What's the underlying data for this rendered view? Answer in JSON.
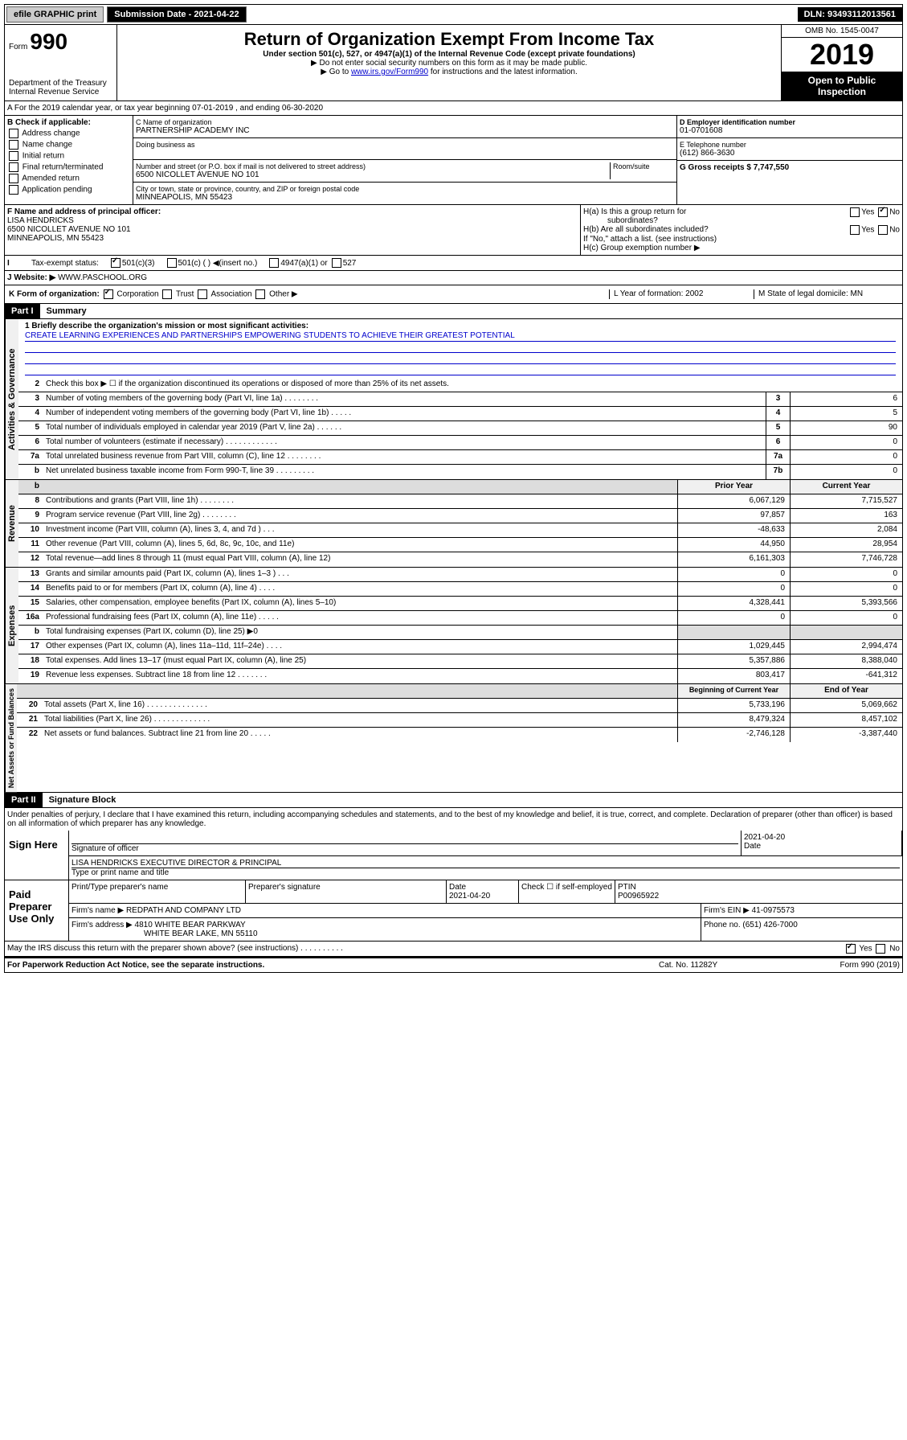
{
  "topbar": {
    "efile": "efile GRAPHIC print",
    "submission_date_label": "Submission Date - 2021-04-22",
    "dln": "DLN: 93493112013561"
  },
  "header": {
    "form_label": "Form",
    "form_number": "990",
    "dept1": "Department of the Treasury",
    "dept2": "Internal Revenue Service",
    "title": "Return of Organization Exempt From Income Tax",
    "subtitle": "Under section 501(c), 527, or 4947(a)(1) of the Internal Revenue Code (except private foundations)",
    "note1": "▶ Do not enter social security numbers on this form as it may be made public.",
    "note2_pre": "▶ Go to ",
    "note2_link": "www.irs.gov/Form990",
    "note2_post": " for instructions and the latest information.",
    "omb": "OMB No. 1545-0047",
    "year": "2019",
    "open_public": "Open to Public Inspection"
  },
  "calendar": {
    "text": "A For the 2019 calendar year, or tax year beginning 07-01-2019    , and ending 06-30-2020"
  },
  "box_b": {
    "header": "B Check if applicable:",
    "addr_change": "Address change",
    "name_change": "Name change",
    "initial": "Initial return",
    "final": "Final return/terminated",
    "amended": "Amended return",
    "application": "Application pending"
  },
  "box_c": {
    "name_label": "C Name of organization",
    "name": "PARTNERSHIP ACADEMY INC",
    "dba_label": "Doing business as",
    "addr_label": "Number and street (or P.O. box if mail is not delivered to street address)",
    "room_label": "Room/suite",
    "addr": "6500 NICOLLET AVENUE NO 101",
    "city_label": "City or town, state or province, country, and ZIP or foreign postal code",
    "city": "MINNEAPOLIS, MN  55423"
  },
  "box_d": {
    "label": "D Employer identification number",
    "value": "01-0701608"
  },
  "box_e": {
    "label": "E Telephone number",
    "value": "(612) 866-3630"
  },
  "box_g": {
    "label": "G Gross receipts $ 7,747,550"
  },
  "box_f": {
    "label": "F Name and address of principal officer:",
    "name": "LISA HENDRICKS",
    "addr1": "6500 NICOLLET AVENUE NO 101",
    "addr2": "MINNEAPOLIS, MN  55423"
  },
  "box_h": {
    "ha_label": "H(a)  Is this a group return for",
    "ha_sub": "subordinates?",
    "hb_label": "H(b)  Are all subordinates included?",
    "hb_note": "If \"No,\" attach a list. (see instructions)",
    "hc_label": "H(c)  Group exemption number ▶",
    "yes": "Yes",
    "no": "No"
  },
  "box_i": {
    "label": "Tax-exempt status:",
    "c501c3": "501(c)(3)",
    "c501c": "501(c) (   ) ◀(insert no.)",
    "c4947": "4947(a)(1) or",
    "c527": "527"
  },
  "box_j": {
    "label": "J Website: ▶",
    "value": "WWW.PASCHOOL.ORG"
  },
  "box_k": {
    "label": "K Form of organization:",
    "corp": "Corporation",
    "trust": "Trust",
    "assoc": "Association",
    "other": "Other ▶"
  },
  "box_l": {
    "label": "L Year of formation: 2002"
  },
  "box_m": {
    "label": "M State of legal domicile: MN"
  },
  "part1": {
    "header": "Part I",
    "title": "Summary",
    "section_gov": "Activities & Governance",
    "section_rev": "Revenue",
    "section_exp": "Expenses",
    "section_net": "Net Assets or Fund Balances",
    "line1_label": "1  Briefly describe the organization's mission or most significant activities:",
    "line1_text": "CREATE LEARNING EXPERIENCES AND PARTNERSHIPS EMPOWERING STUDENTS TO ACHIEVE THEIR GREATEST POTENTIAL",
    "line2": "Check this box ▶ ☐  if the organization discontinued its operations or disposed of more than 25% of its net assets.",
    "prior_year": "Prior Year",
    "current_year": "Current Year",
    "beg_year": "Beginning of Current Year",
    "end_year": "End of Year",
    "rows_gov": [
      {
        "n": "3",
        "label": "Number of voting members of the governing body (Part VI, line 1a)   .   .   .   .   .   .   .   .",
        "col": "3",
        "val": "6"
      },
      {
        "n": "4",
        "label": "Number of independent voting members of the governing body (Part VI, line 1b)   .   .   .   .   .",
        "col": "4",
        "val": "5"
      },
      {
        "n": "5",
        "label": "Total number of individuals employed in calendar year 2019 (Part V, line 2a)   .   .   .   .   .   .",
        "col": "5",
        "val": "90"
      },
      {
        "n": "6",
        "label": "Total number of volunteers (estimate if necessary)   .   .   .   .   .   .   .   .   .   .   .   .",
        "col": "6",
        "val": "0"
      },
      {
        "n": "7a",
        "label": "Total unrelated business revenue from Part VIII, column (C), line 12   .   .   .   .   .   .   .   .",
        "col": "7a",
        "val": "0"
      },
      {
        "n": "b",
        "label": "Net unrelated business taxable income from Form 990-T, line 39   .   .   .   .   .   .   .   .   .",
        "col": "7b",
        "val": "0"
      }
    ],
    "rows_rev": [
      {
        "n": "8",
        "label": "Contributions and grants (Part VIII, line 1h)   .   .   .   .   .   .   .   .",
        "py": "6,067,129",
        "cy": "7,715,527"
      },
      {
        "n": "9",
        "label": "Program service revenue (Part VIII, line 2g)   .   .   .   .   .   .   .   .",
        "py": "97,857",
        "cy": "163"
      },
      {
        "n": "10",
        "label": "Investment income (Part VIII, column (A), lines 3, 4, and 7d )   .   .   .",
        "py": "-48,633",
        "cy": "2,084"
      },
      {
        "n": "11",
        "label": "Other revenue (Part VIII, column (A), lines 5, 6d, 8c, 9c, 10c, and 11e)",
        "py": "44,950",
        "cy": "28,954"
      },
      {
        "n": "12",
        "label": "Total revenue—add lines 8 through 11 (must equal Part VIII, column (A), line 12)",
        "py": "6,161,303",
        "cy": "7,746,728"
      }
    ],
    "rows_exp": [
      {
        "n": "13",
        "label": "Grants and similar amounts paid (Part IX, column (A), lines 1–3 )   .   .   .",
        "py": "0",
        "cy": "0"
      },
      {
        "n": "14",
        "label": "Benefits paid to or for members (Part IX, column (A), line 4)   .   .   .   .",
        "py": "0",
        "cy": "0"
      },
      {
        "n": "15",
        "label": "Salaries, other compensation, employee benefits (Part IX, column (A), lines 5–10)",
        "py": "4,328,441",
        "cy": "5,393,566"
      },
      {
        "n": "16a",
        "label": "Professional fundraising fees (Part IX, column (A), line 11e)   .   .   .   .   .",
        "py": "0",
        "cy": "0"
      },
      {
        "n": "b",
        "label": "Total fundraising expenses (Part IX, column (D), line 25) ▶0",
        "py": "",
        "cy": ""
      },
      {
        "n": "17",
        "label": "Other expenses (Part IX, column (A), lines 11a–11d, 11f–24e)   .   .   .   .",
        "py": "1,029,445",
        "cy": "2,994,474"
      },
      {
        "n": "18",
        "label": "Total expenses. Add lines 13–17 (must equal Part IX, column (A), line 25)",
        "py": "5,357,886",
        "cy": "8,388,040"
      },
      {
        "n": "19",
        "label": "Revenue less expenses. Subtract line 18 from line 12   .   .   .   .   .   .   .",
        "py": "803,417",
        "cy": "-641,312"
      }
    ],
    "rows_net": [
      {
        "n": "20",
        "label": "Total assets (Part X, line 16)   .   .   .   .   .   .   .   .   .   .   .   .   .   .",
        "py": "5,733,196",
        "cy": "5,069,662"
      },
      {
        "n": "21",
        "label": "Total liabilities (Part X, line 26)   .   .   .   .   .   .   .   .   .   .   .   .   .",
        "py": "8,479,324",
        "cy": "8,457,102"
      },
      {
        "n": "22",
        "label": "Net assets or fund balances. Subtract line 21 from line 20   .   .   .   .   .",
        "py": "-2,746,128",
        "cy": "-3,387,440"
      }
    ]
  },
  "part2": {
    "header": "Part II",
    "title": "Signature Block",
    "declaration": "Under penalties of perjury, I declare that I have examined this return, including accompanying schedules and statements, and to the best of my knowledge and belief, it is true, correct, and complete. Declaration of preparer (other than officer) is based on all information of which preparer has any knowledge.",
    "sign_here": "Sign Here",
    "sig_officer": "Signature of officer",
    "date": "Date",
    "date_val": "2021-04-20",
    "officer_name": "LISA HENDRICKS  EXECUTIVE DIRECTOR & PRINCIPAL",
    "type_name": "Type or print name and title",
    "paid_prep": "Paid Preparer Use Only",
    "print_name": "Print/Type preparer's name",
    "prep_sig": "Preparer's signature",
    "prep_date": "2021-04-20",
    "check_self": "Check ☐ if self-employed",
    "ptin_label": "PTIN",
    "ptin": "P00965922",
    "firm_name_label": "Firm's name    ▶",
    "firm_name": "REDPATH AND COMPANY LTD",
    "firm_ein_label": "Firm's EIN ▶",
    "firm_ein": "41-0975573",
    "firm_addr_label": "Firm's address ▶",
    "firm_addr1": "4810 WHITE BEAR PARKWAY",
    "firm_addr2": "WHITE BEAR LAKE, MN  55110",
    "phone_label": "Phone no.",
    "phone": "(651) 426-7000",
    "discuss": "May the IRS discuss this return with the preparer shown above? (see instructions)   .   .   .   .   .   .   .   .   .   .",
    "yes": "Yes",
    "no": "No"
  },
  "footer": {
    "paperwork": "For Paperwork Reduction Act Notice, see the separate instructions.",
    "cat": "Cat. No. 11282Y",
    "form": "Form 990 (2019)"
  }
}
